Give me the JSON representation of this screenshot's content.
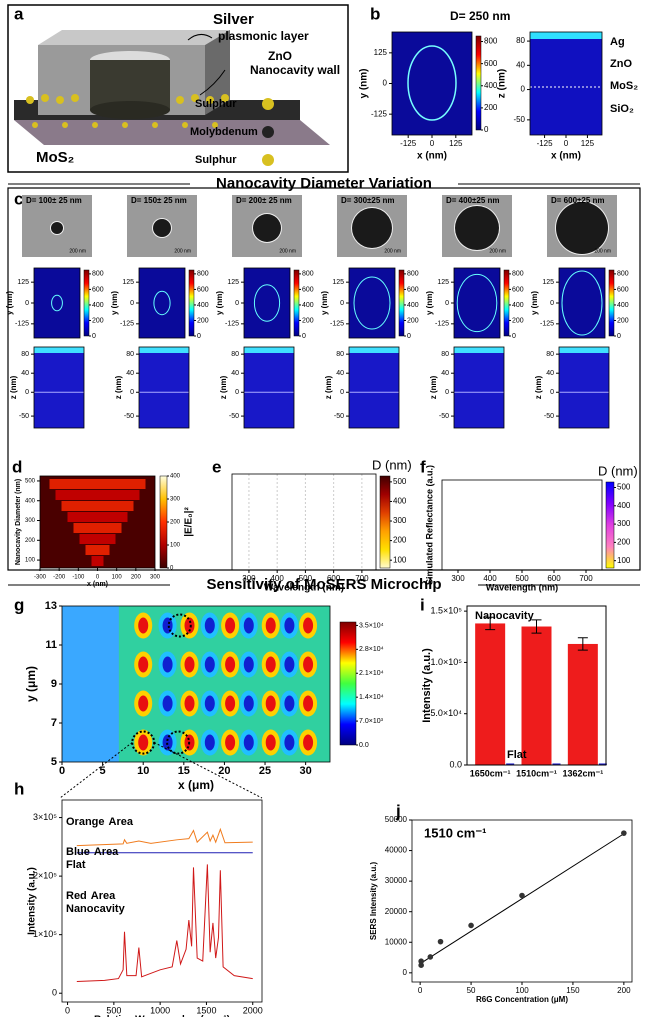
{
  "panel_labels": {
    "a": "a",
    "b": "b",
    "c": "c",
    "d": "d",
    "e": "e",
    "f": "f",
    "g": "g",
    "h": "h",
    "i": "i",
    "j": "j"
  },
  "panel_a": {
    "silver": "Silver",
    "plasmonic": "plasmonic layer",
    "zno": "ZnO",
    "wall": "Nanocavity wall",
    "sulphur": "Sulphur",
    "molybdenum": "Molybdenum",
    "mos2": "MoS₂"
  },
  "panel_b": {
    "title": "D= 250 nm",
    "layers": [
      "Ag",
      "ZnO",
      "MoS₂",
      "SiO₂"
    ]
  },
  "section_titles": [
    "Nanocavity Diameter Variation",
    "Sensitivity of MoSERS Microchip"
  ],
  "panel_c": {
    "diameters": [
      "D= 100± 25 nm",
      "D= 150± 25 nm",
      "D= 200± 25 nm",
      "D= 300±25 nm",
      "D= 400±25 nm",
      "D= 600±25 nm"
    ],
    "scale_bar": "200 nm"
  },
  "chart_data": [
    {
      "type": "heatmap",
      "xlabel": "x (nm)",
      "ylabel": "y (nm)",
      "xlim": [
        -210,
        210
      ],
      "xticks": [
        -125,
        0,
        125
      ],
      "ylim": [
        -210,
        210
      ],
      "yticks": [
        -125,
        0,
        125
      ],
      "clim": [
        0,
        850
      ],
      "cticks": [
        0,
        200,
        400,
        600,
        800
      ],
      "colormap": [
        "#00007f",
        "#0000ff",
        "#00ffff",
        "#ffff00",
        "#ff0000",
        "#7f0000"
      ]
    },
    {
      "type": "heatmap",
      "xlabel": "x (nm)",
      "ylabel": "z (nm)",
      "xlim": [
        -210,
        210
      ],
      "xticks": [
        -125,
        0,
        125
      ],
      "ylim": [
        -75,
        95
      ],
      "yticks": [
        -50,
        0,
        40,
        80
      ]
    },
    {
      "type": "heatmap",
      "ylabel": "y (nm)",
      "ylim": [
        -210,
        210
      ],
      "yticks": [
        -125,
        0,
        125
      ],
      "clim": [
        0,
        850
      ],
      "cticks": [
        0,
        200,
        400,
        600,
        800
      ],
      "colormap": [
        "#00007f",
        "#0000ff",
        "#00ffff",
        "#ffff00",
        "#ff0000",
        "#7f0000"
      ]
    },
    {
      "type": "heatmap",
      "ylabel": "z (nm)",
      "ylim": [
        -75,
        95
      ],
      "yticks": [
        -50,
        0,
        40,
        80
      ]
    },
    {
      "type": "heatmap",
      "xlabel": "x (nm)",
      "ylabel": "Nanocavity Diameter (nm)",
      "clabel": "|E/E₀|²",
      "xlim": [
        -300,
        300
      ],
      "xticks": [
        -300,
        -200,
        -100,
        0,
        100,
        200,
        300
      ],
      "ylim": [
        60,
        525
      ],
      "yticks": [
        100,
        200,
        300,
        400,
        500
      ],
      "clim": [
        0,
        400
      ],
      "cticks": [
        0,
        100,
        200,
        300,
        400
      ],
      "colormap": [
        "#3a0000",
        "#b00000",
        "#ff3000",
        "#ffc000",
        "#ffffe0"
      ]
    },
    {
      "type": "line",
      "xlabel": "Wavelength (nm)",
      "clabel": "D (nm)",
      "xlim": [
        240,
        750
      ],
      "xticks": [
        300,
        400,
        500,
        600,
        700
      ],
      "clim": [
        60,
        530
      ],
      "cticks": [
        100,
        200,
        300,
        400,
        500
      ],
      "colormap": [
        "#fffbd0",
        "#ffe000",
        "#ffa000",
        "#e04000",
        "#a00000",
        "#400000"
      ]
    },
    {
      "type": "line",
      "xlabel": "Wavelength (nm)",
      "ylabel": "Simulated Reflectance (a.u.)",
      "clabel": "D (nm)",
      "xlim": [
        250,
        750
      ],
      "xticks": [
        300,
        400,
        500,
        600,
        700
      ],
      "clim": [
        60,
        530
      ],
      "cticks": [
        100,
        200,
        300,
        400,
        500
      ],
      "colormap": [
        "#ffff00",
        "#ff80c0",
        "#e040e0",
        "#8000ff",
        "#0000ff"
      ]
    },
    {
      "type": "heatmap",
      "xlabel": "x (μm)",
      "ylabel": "y (μm)",
      "xlim": [
        0,
        33
      ],
      "xticks": [
        0,
        5,
        10,
        15,
        20,
        25,
        30
      ],
      "ylim": [
        5,
        13
      ],
      "yticks": [
        5,
        7,
        9,
        11,
        13
      ],
      "clim": [
        0,
        36000
      ],
      "cticks": [
        {
          "value": 0,
          "label": "0.0"
        },
        {
          "value": 7000,
          "label": "7.0×10³"
        },
        {
          "value": 14000,
          "label": "1.4×10⁴"
        },
        {
          "value": 21000,
          "label": "2.1×10⁴"
        },
        {
          "value": 28000,
          "label": "2.8×10⁴"
        },
        {
          "value": 35000,
          "label": "3.5×10⁴"
        }
      ],
      "colormap": [
        "#00007f",
        "#0000ff",
        "#00ffff",
        "#40ff40",
        "#ffff00",
        "#ff0000",
        "#7f0000"
      ]
    },
    {
      "type": "bar",
      "ylabel": "Intensity (a.u.)",
      "categories": [
        "1650cm⁻¹",
        "1510cm⁻¹",
        "1362cm⁻¹"
      ],
      "ylim": [
        0,
        155000
      ],
      "yticks": [
        {
          "value": 0,
          "label": "0.0"
        },
        {
          "value": 50000,
          "label": "5.0×10⁴"
        },
        {
          "value": 100000,
          "label": "1.0×10⁵"
        },
        {
          "value": 150000,
          "label": "1.5×10⁵"
        }
      ],
      "series": [
        {
          "name": "Nanocavity",
          "color": "#ee1c1c",
          "values": [
            138000,
            135000,
            118000
          ],
          "errors": [
            6000,
            6500,
            6000
          ]
        },
        {
          "name": "Flat",
          "color": "#1a1acc",
          "values": [
            1500,
            1500,
            1500
          ]
        }
      ]
    },
    {
      "type": "line",
      "xlabel": "Relative Wavenumber (cm⁻¹)",
      "ylabel": "Intensity (a.u.)",
      "xlim": [
        -60,
        2100
      ],
      "xticks": [
        0,
        500,
        1000,
        1500,
        2000
      ],
      "ylim": [
        -15000,
        330000
      ],
      "yticks": [
        0,
        {
          "value": 100000,
          "label": "1×10⁵"
        },
        {
          "value": 200000,
          "label": "2×10⁵"
        },
        {
          "value": 300000,
          "label": "3×10⁵"
        }
      ],
      "series": [
        {
          "name": "Orange",
          "label": "Area",
          "color": "#f07c1e",
          "x": [
            100,
            600,
            615,
            640,
            770,
            900,
            1180,
            1310,
            1360,
            1400,
            1510,
            1540,
            1570,
            1600,
            1650,
            1700,
            2000
          ],
          "values": [
            252000,
            255000,
            262000,
            256000,
            260000,
            256000,
            262000,
            264000,
            278000,
            258000,
            275000,
            260000,
            270000,
            258000,
            280000,
            257000,
            258000
          ]
        },
        {
          "name": "Blue",
          "label": "Area",
          "sublabel": "Flat",
          "color": "#1f1fb4",
          "x": [
            100,
            2000
          ],
          "values": [
            240000,
            240000
          ]
        },
        {
          "name": "Red",
          "label": "Area",
          "sublabel": "Nanocavity",
          "color": "#d01818",
          "x": [
            100,
            400,
            550,
            600,
            615,
            640,
            740,
            770,
            800,
            1000,
            1130,
            1180,
            1220,
            1280,
            1310,
            1340,
            1360,
            1400,
            1460,
            1510,
            1540,
            1570,
            1600,
            1630,
            1650,
            1680,
            1800,
            2000
          ],
          "values": [
            20000,
            22000,
            25000,
            40000,
            105000,
            30000,
            30000,
            78000,
            28000,
            40000,
            45000,
            90000,
            50000,
            75000,
            125000,
            80000,
            215000,
            60000,
            55000,
            220000,
            70000,
            120000,
            60000,
            95000,
            210000,
            45000,
            30000,
            25000
          ]
        }
      ]
    },
    {
      "type": "scatter",
      "annotation": "1510 cm⁻¹",
      "xlabel": "R6G Concentration (μM)",
      "ylabel": "SERS Intensity (a.u.)",
      "xlim": [
        -8,
        208
      ],
      "xticks": [
        0,
        50,
        100,
        150,
        200
      ],
      "ylim": [
        -3000,
        50000
      ],
      "yticks": [
        0,
        10000,
        20000,
        30000,
        40000,
        50000
      ],
      "color": "#333333",
      "x": [
        1,
        1,
        10,
        20,
        50,
        100,
        200
      ],
      "values": [
        2500,
        3800,
        5200,
        10200,
        15500,
        25300,
        45700
      ],
      "fit": {
        "x": [
          0,
          200
        ],
        "values": [
          3000,
          45500
        ]
      }
    }
  ]
}
